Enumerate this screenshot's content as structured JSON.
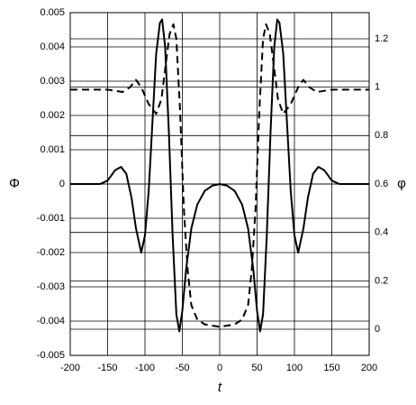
{
  "chart_data": {
    "type": "line",
    "y_label": "Φ",
    "y2_label": "φ",
    "x_label": "t",
    "xlim": [
      -200,
      200
    ],
    "xticks": [
      -200,
      -150,
      -100,
      -50,
      0,
      50,
      100,
      150,
      200
    ],
    "ylim": [
      -0.005,
      0.005
    ],
    "yticks": [
      -0.005,
      -0.004,
      -0.003,
      -0.002,
      -0.001,
      0,
      0.001,
      0.002,
      0.003,
      0.004,
      0.005
    ],
    "y2lim": [
      -0.108,
      1.308
    ],
    "y2ticks": [
      0,
      0.2,
      0.4,
      0.6,
      0.8,
      1,
      1.2
    ],
    "grid": true,
    "series": [
      {
        "color": "#000000",
        "dash": "solid",
        "x": [
          -200,
          -160,
          -150,
          -140,
          -132,
          -125,
          -118,
          -112,
          -105,
          -100,
          -95,
          -90,
          -85,
          -80,
          -77,
          -73,
          -68,
          -63,
          -58,
          -54,
          -50,
          -45,
          -38,
          -30,
          -20,
          -10,
          0,
          10,
          20,
          30,
          38,
          45,
          50,
          54,
          58,
          63,
          68,
          73,
          77,
          80,
          85,
          90,
          95,
          100,
          105,
          112,
          118,
          125,
          132,
          140,
          150,
          160,
          200
        ],
        "values": [
          0,
          0,
          0.0001,
          0.0004,
          0.0005,
          0.0003,
          -0.0004,
          -0.0013,
          -0.002,
          -0.0015,
          -0.0002,
          0.0018,
          0.0038,
          0.0047,
          0.0048,
          0.004,
          0.0015,
          -0.0015,
          -0.0038,
          -0.0043,
          -0.0037,
          -0.0025,
          -0.0013,
          -0.0006,
          -0.0002,
          -5e-05,
          0,
          -5e-05,
          -0.0002,
          -0.0006,
          -0.0013,
          -0.0025,
          -0.0037,
          -0.0043,
          -0.0038,
          -0.0015,
          0.0015,
          0.004,
          0.0048,
          0.0047,
          0.0038,
          0.0018,
          -0.0002,
          -0.0015,
          -0.002,
          -0.0013,
          -0.0004,
          0.0003,
          0.0005,
          0.0004,
          0.0001,
          0,
          0
        ]
      },
      {
        "color": "#000000",
        "dash": "dashed",
        "axis": "y2",
        "x": [
          -200,
          -150,
          -140,
          -130,
          -120,
          -112,
          -105,
          -95,
          -85,
          -78,
          -72,
          -67,
          -62,
          -58,
          -53,
          -48,
          -43,
          -38,
          -30,
          -20,
          -10,
          0,
          10,
          20,
          30,
          38,
          43,
          48,
          53,
          58,
          62,
          67,
          72,
          78,
          85,
          95,
          105,
          112,
          120,
          130,
          140,
          150,
          200
        ],
        "values": [
          0.99,
          0.99,
          0.985,
          0.98,
          1.0,
          1.03,
          1.0,
          0.93,
          0.89,
          0.95,
          1.1,
          1.22,
          1.26,
          1.2,
          0.9,
          0.5,
          0.25,
          0.1,
          0.04,
          0.02,
          0.015,
          0.01,
          0.015,
          0.02,
          0.04,
          0.1,
          0.25,
          0.5,
          0.9,
          1.2,
          1.26,
          1.22,
          1.1,
          0.95,
          0.89,
          0.93,
          1.0,
          1.03,
          1.0,
          0.98,
          0.985,
          0.99,
          0.99
        ]
      }
    ]
  }
}
